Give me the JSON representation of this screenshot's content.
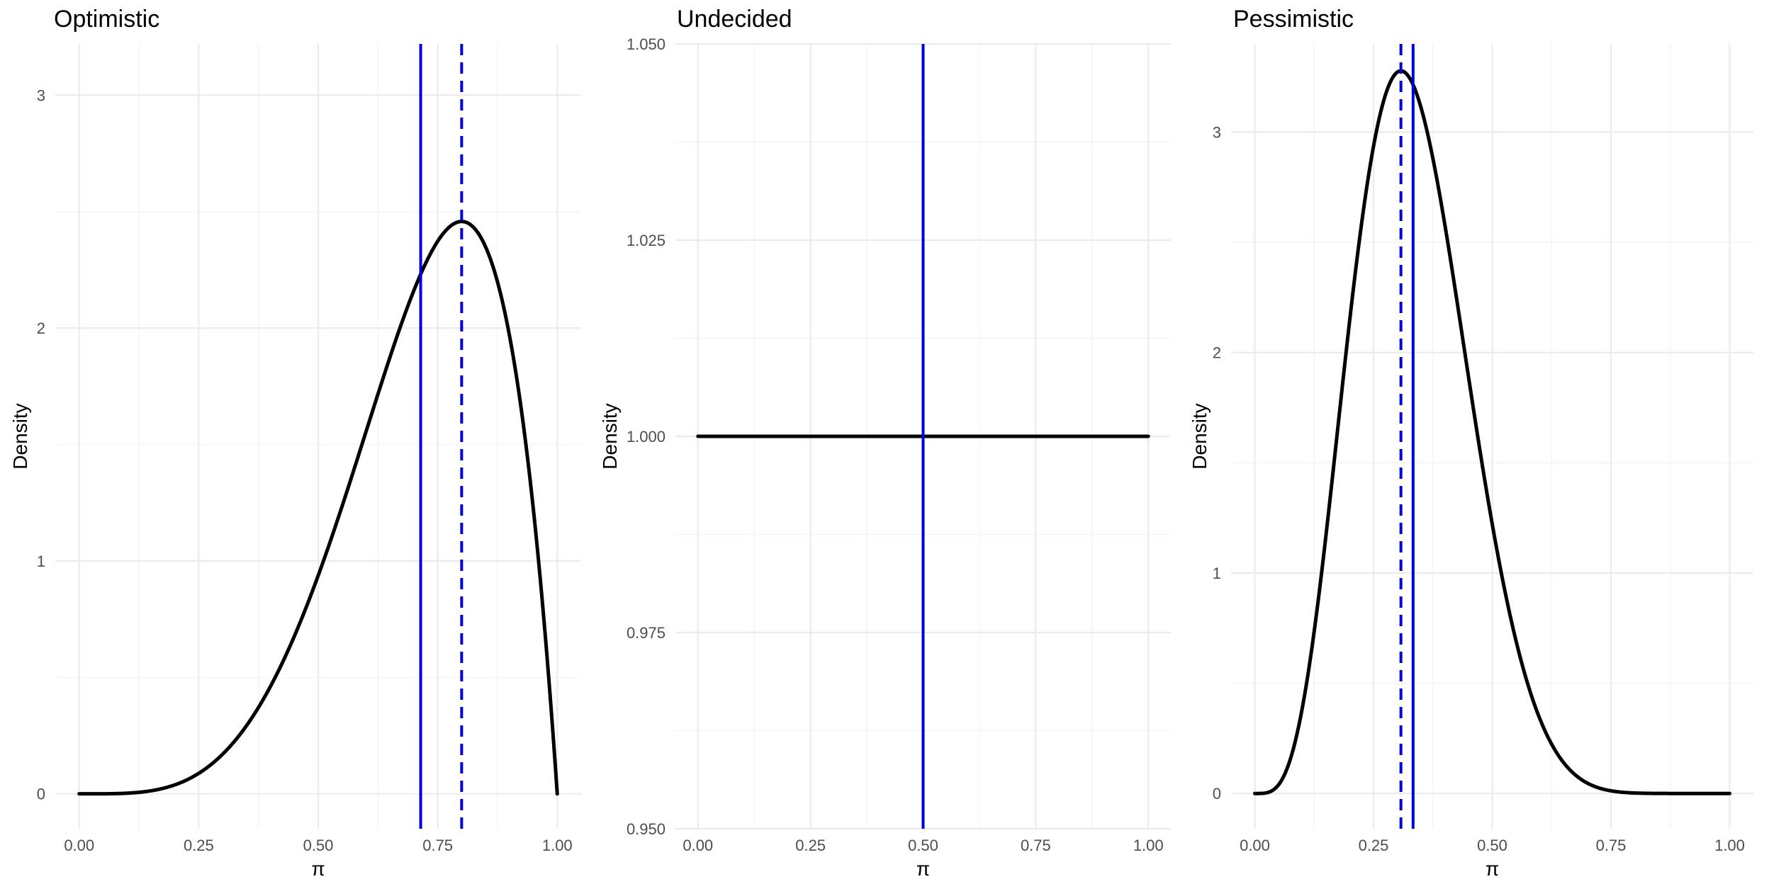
{
  "chart_data": [
    {
      "type": "line",
      "title": "Optimistic",
      "xlabel": "π",
      "ylabel": "Density",
      "xlim": [
        0,
        1
      ],
      "ylim": [
        -0.15,
        3.22
      ],
      "x_ticks": [
        0,
        0.25,
        0.5,
        0.75,
        1
      ],
      "x_tick_labels": [
        "0.00",
        "0.25",
        "0.50",
        "0.75",
        "1.00"
      ],
      "y_ticks": [
        0,
        1,
        2,
        3
      ],
      "y_tick_labels": [
        "0",
        "1",
        "2",
        "3"
      ],
      "grid": true,
      "distribution": "beta",
      "alpha": 5,
      "beta": 2,
      "curve_color": "#000000",
      "vlines": [
        {
          "x": 0.7143,
          "style": "solid",
          "color": "#0000dd"
        },
        {
          "x": 0.8,
          "style": "dashed",
          "color": "#0000dd"
        }
      ]
    },
    {
      "type": "line",
      "title": "Undecided",
      "xlabel": "π",
      "ylabel": "Density",
      "xlim": [
        0,
        1
      ],
      "ylim": [
        0.95,
        1.05
      ],
      "x_ticks": [
        0,
        0.25,
        0.5,
        0.75,
        1
      ],
      "x_tick_labels": [
        "0.00",
        "0.25",
        "0.50",
        "0.75",
        "1.00"
      ],
      "y_ticks": [
        0.95,
        0.975,
        1.0,
        1.025,
        1.05
      ],
      "y_tick_labels": [
        "0.950",
        "0.975",
        "1.000",
        "1.025",
        "1.050"
      ],
      "grid": true,
      "distribution": "beta",
      "alpha": 1,
      "beta": 1,
      "curve_color": "#000000",
      "vlines": [
        {
          "x": 0.5,
          "style": "solid",
          "color": "#0000dd"
        }
      ]
    },
    {
      "type": "line",
      "title": "Pessimistic",
      "xlabel": "π",
      "ylabel": "Density",
      "xlim": [
        0,
        1
      ],
      "ylim": [
        -0.16,
        3.4
      ],
      "x_ticks": [
        0,
        0.25,
        0.5,
        0.75,
        1
      ],
      "x_tick_labels": [
        "0.00",
        "0.25",
        "0.50",
        "0.75",
        "1.00"
      ],
      "y_ticks": [
        0,
        1,
        2,
        3
      ],
      "y_tick_labels": [
        "0",
        "1",
        "2",
        "3"
      ],
      "grid": true,
      "distribution": "beta",
      "alpha": 5,
      "beta": 10,
      "curve_color": "#000000",
      "vlines": [
        {
          "x": 0.3333,
          "style": "solid",
          "color": "#0000dd"
        },
        {
          "x": 0.3077,
          "style": "dashed",
          "color": "#0000dd"
        }
      ]
    }
  ]
}
